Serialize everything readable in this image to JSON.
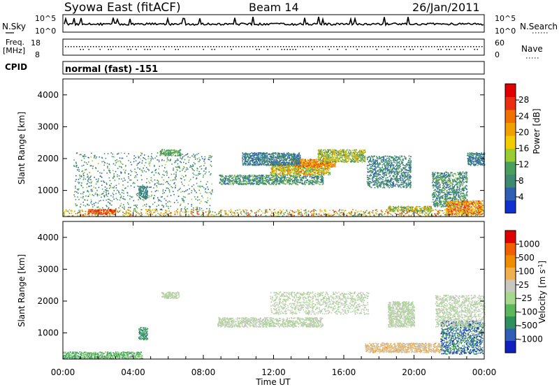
{
  "header": {
    "station": "Syowa East (fitACF)",
    "beam": "Beam 14",
    "date": "26/Jan/2011"
  },
  "noise_panel": {
    "left_label": "N.Sky",
    "left_ticks": [
      "10^5",
      "10^0"
    ],
    "right_label": "N.Search",
    "right_ticks": [
      "10^5",
      "10^0"
    ]
  },
  "freq_panel": {
    "left_label_1": "Freq.",
    "left_label_2": "[MHz]",
    "left_ticks": [
      "18",
      "8"
    ],
    "right_label": "Nave",
    "right_ticks": [
      "60",
      "0"
    ]
  },
  "cpid_panel": {
    "label": "CPID",
    "mode": "normal (fast) -151"
  },
  "colors": {
    "power": [
      "#1030d0",
      "#2f5fb5",
      "#3e8a6e",
      "#4aa05a",
      "#9acd32",
      "#f2cc00",
      "#f0a000",
      "#f07000",
      "#e83010",
      "#e00000"
    ],
    "velocity": [
      "#1020c0",
      "#2f5fb5",
      "#2f8f5f",
      "#5ab85a",
      "#a8d890",
      "#c8c8c0",
      "#f0b050",
      "#f08c00",
      "#f06000",
      "#e00000"
    ],
    "ground_scatter": "#bdbdb5"
  },
  "chart_data": [
    {
      "type": "heatmap",
      "name": "power",
      "ylabel": "Slant Range [km]",
      "xlabel": "Time UT",
      "x_ticks": [
        "00:00",
        "04:00",
        "08:00",
        "12:00",
        "16:00",
        "20:00",
        "00:00"
      ],
      "xlim": [
        0,
        24
      ],
      "ylim": [
        180,
        4500
      ],
      "y_ticks": [
        1000,
        2000,
        3000,
        4000
      ],
      "colorbar": {
        "label": "Power [dB]",
        "ticks": [
          4,
          8,
          12,
          16,
          20,
          24,
          28
        ],
        "range": [
          0,
          32
        ]
      },
      "regions": [
        {
          "t": [
            0,
            24
          ],
          "r": [
            200,
            420
          ],
          "v": [
            8,
            28
          ]
        },
        {
          "t": [
            1.4,
            3.0
          ],
          "r": [
            260,
            420
          ],
          "v": [
            22,
            30
          ]
        },
        {
          "t": [
            8.9,
            14.8
          ],
          "r": [
            1200,
            1500
          ],
          "v": [
            4,
            14
          ]
        },
        {
          "t": [
            11.8,
            15.2
          ],
          "r": [
            1500,
            1900
          ],
          "v": [
            10,
            26
          ]
        },
        {
          "t": [
            13.0,
            15.5
          ],
          "r": [
            1750,
            2000
          ],
          "v": [
            16,
            28
          ]
        },
        {
          "t": [
            14.5,
            17.2
          ],
          "r": [
            1900,
            2300
          ],
          "v": [
            8,
            22
          ]
        },
        {
          "t": [
            10.2,
            13.5
          ],
          "r": [
            1800,
            2200
          ],
          "v": [
            4,
            10
          ]
        },
        {
          "t": [
            5.5,
            6.7
          ],
          "r": [
            2100,
            2300
          ],
          "v": [
            8,
            14
          ]
        },
        {
          "t": [
            4.3,
            4.8
          ],
          "r": [
            750,
            1150
          ],
          "v": [
            4,
            10
          ]
        },
        {
          "t": [
            17.3,
            19.8
          ],
          "r": [
            1100,
            2100
          ],
          "v": [
            4,
            12
          ]
        },
        {
          "t": [
            18.5,
            21.0
          ],
          "r": [
            350,
            520
          ],
          "v": [
            6,
            24
          ]
        },
        {
          "t": [
            21.0,
            23.0
          ],
          "r": [
            500,
            1600
          ],
          "v": [
            4,
            14
          ]
        },
        {
          "t": [
            21.8,
            23.9
          ],
          "r": [
            250,
            700
          ],
          "v": [
            14,
            30
          ]
        },
        {
          "t": [
            23.0,
            24.0
          ],
          "r": [
            1800,
            2200
          ],
          "v": [
            4,
            10
          ]
        },
        {
          "t": [
            0.6,
            8.5
          ],
          "r": [
            400,
            2200
          ],
          "v": [
            4,
            14
          ]
        }
      ]
    },
    {
      "type": "heatmap",
      "name": "velocity",
      "ylabel": "Slant Range [km]",
      "xlabel": "Time UT",
      "x_ticks": [
        "00:00",
        "04:00",
        "08:00",
        "12:00",
        "16:00",
        "20:00",
        "00:00"
      ],
      "xlim": [
        0,
        24
      ],
      "ylim": [
        180,
        4500
      ],
      "y_ticks": [
        1000,
        2000,
        3000,
        4000
      ],
      "colorbar": {
        "label": "Velocity [m s^-1]",
        "ticks": [
          "1000",
          "500",
          "100",
          "25",
          "-25",
          "-100",
          "-500",
          "-1000"
        ],
        "range": [
          -1200,
          1200
        ]
      },
      "regions": [
        {
          "t": [
            0,
            4.5
          ],
          "r": [
            200,
            420
          ],
          "v": [
            -600,
            -100
          ]
        },
        {
          "t": [
            8.8,
            14.8
          ],
          "r": [
            1200,
            1500
          ],
          "v": [
            -20,
            20
          ]
        },
        {
          "t": [
            11.8,
            17.4
          ],
          "r": [
            1600,
            2300
          ],
          "v": [
            -20,
            20
          ]
        },
        {
          "t": [
            5.6,
            6.6
          ],
          "r": [
            2100,
            2300
          ],
          "v": [
            -20,
            20
          ]
        },
        {
          "t": [
            4.3,
            4.8
          ],
          "r": [
            800,
            1200
          ],
          "v": [
            -800,
            -300
          ]
        },
        {
          "t": [
            17.2,
            21.5
          ],
          "r": [
            400,
            700
          ],
          "v": [
            50,
            500
          ]
        },
        {
          "t": [
            21.5,
            23.9
          ],
          "r": [
            350,
            1400
          ],
          "v": [
            -1100,
            -300
          ]
        },
        {
          "t": [
            21.2,
            24.0
          ],
          "r": [
            1200,
            2200
          ],
          "v": [
            -20,
            20
          ]
        },
        {
          "t": [
            18.5,
            20.0
          ],
          "r": [
            1200,
            2000
          ],
          "v": [
            -20,
            20
          ]
        }
      ]
    }
  ]
}
